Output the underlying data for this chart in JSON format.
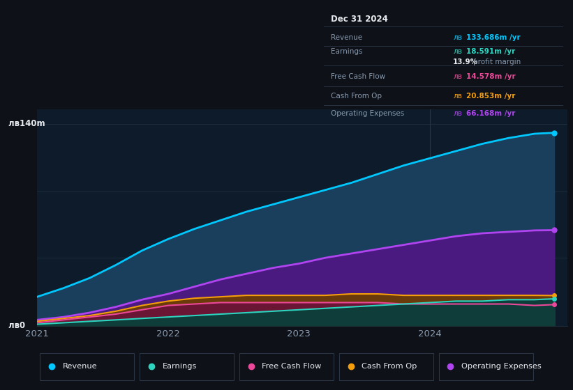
{
  "background_color": "#0e1117",
  "plot_bg_color": "#0d1b2a",
  "x_years": [
    2021.0,
    2021.2,
    2021.4,
    2021.6,
    2021.8,
    2022.0,
    2022.2,
    2022.4,
    2022.6,
    2022.8,
    2023.0,
    2023.2,
    2023.4,
    2023.6,
    2023.8,
    2024.0,
    2024.2,
    2024.4,
    2024.6,
    2024.8,
    2024.95
  ],
  "revenue": [
    20,
    26,
    33,
    42,
    52,
    60,
    67,
    73,
    79,
    84,
    89,
    94,
    99,
    105,
    111,
    116,
    121,
    126,
    130,
    133,
    133.686
  ],
  "op_expenses": [
    4,
    6,
    9,
    13,
    18,
    22,
    27,
    32,
    36,
    40,
    43,
    47,
    50,
    53,
    56,
    59,
    62,
    64,
    65,
    66,
    66.168
  ],
  "cash_from_op": [
    3,
    5,
    7,
    10,
    14,
    17,
    19,
    20,
    21,
    21,
    21,
    21,
    22,
    22,
    21,
    21,
    21,
    21,
    21,
    21,
    20.853
  ],
  "free_cash_flow": [
    2,
    4,
    6,
    8,
    11,
    14,
    15,
    16,
    16,
    16,
    16,
    16,
    16,
    16,
    15,
    15,
    15,
    15,
    15,
    14,
    14.578
  ],
  "earnings": [
    1,
    2,
    3,
    4,
    5,
    6,
    7,
    8,
    9,
    10,
    11,
    12,
    13,
    14,
    15,
    16,
    17,
    17,
    18,
    18,
    18.591
  ],
  "revenue_color": "#00c8ff",
  "op_expenses_color": "#b044f0",
  "cash_from_op_color": "#f59e0b",
  "free_cash_flow_color": "#ec4899",
  "earnings_color": "#2dd4bf",
  "revenue_fill": "#1a3f5c",
  "op_expenses_fill": "#4a1a80",
  "cash_from_op_fill": "#6b3a0a",
  "free_cash_flow_fill": "#6b1535",
  "earnings_fill": "#0f3d3a",
  "ylim_max": 150,
  "gridline_color": "#1e2d3d",
  "text_color": "#8a9bb0",
  "white_color": "#e8ecf0",
  "info_box": {
    "date": "Dec 31 2024",
    "revenue_label": "Revenue",
    "earnings_label": "Earnings",
    "profit_pct": "13.9%",
    "profit_text": " profit margin",
    "fcf_label": "Free Cash Flow",
    "cashop_label": "Cash From Op",
    "opex_label": "Operating Expenses",
    "revenue_lv": "лв",
    "revenue_val": "133.686m",
    "earnings_lv": "лв",
    "earnings_val": "18.591m",
    "fcf_lv": "лв",
    "fcf_val": "14.578m",
    "cashop_lv": "лв",
    "cashop_val": "20.853m",
    "opex_lv": "лв",
    "opex_val": "66.168m",
    "yr": " /yr"
  },
  "legend_items": [
    {
      "label": "Revenue",
      "color": "#00c8ff"
    },
    {
      "label": "Earnings",
      "color": "#2dd4bf"
    },
    {
      "label": "Free Cash Flow",
      "color": "#ec4899"
    },
    {
      "label": "Cash From Op",
      "color": "#f59e0b"
    },
    {
      "label": "Operating Expenses",
      "color": "#b044f0"
    }
  ]
}
